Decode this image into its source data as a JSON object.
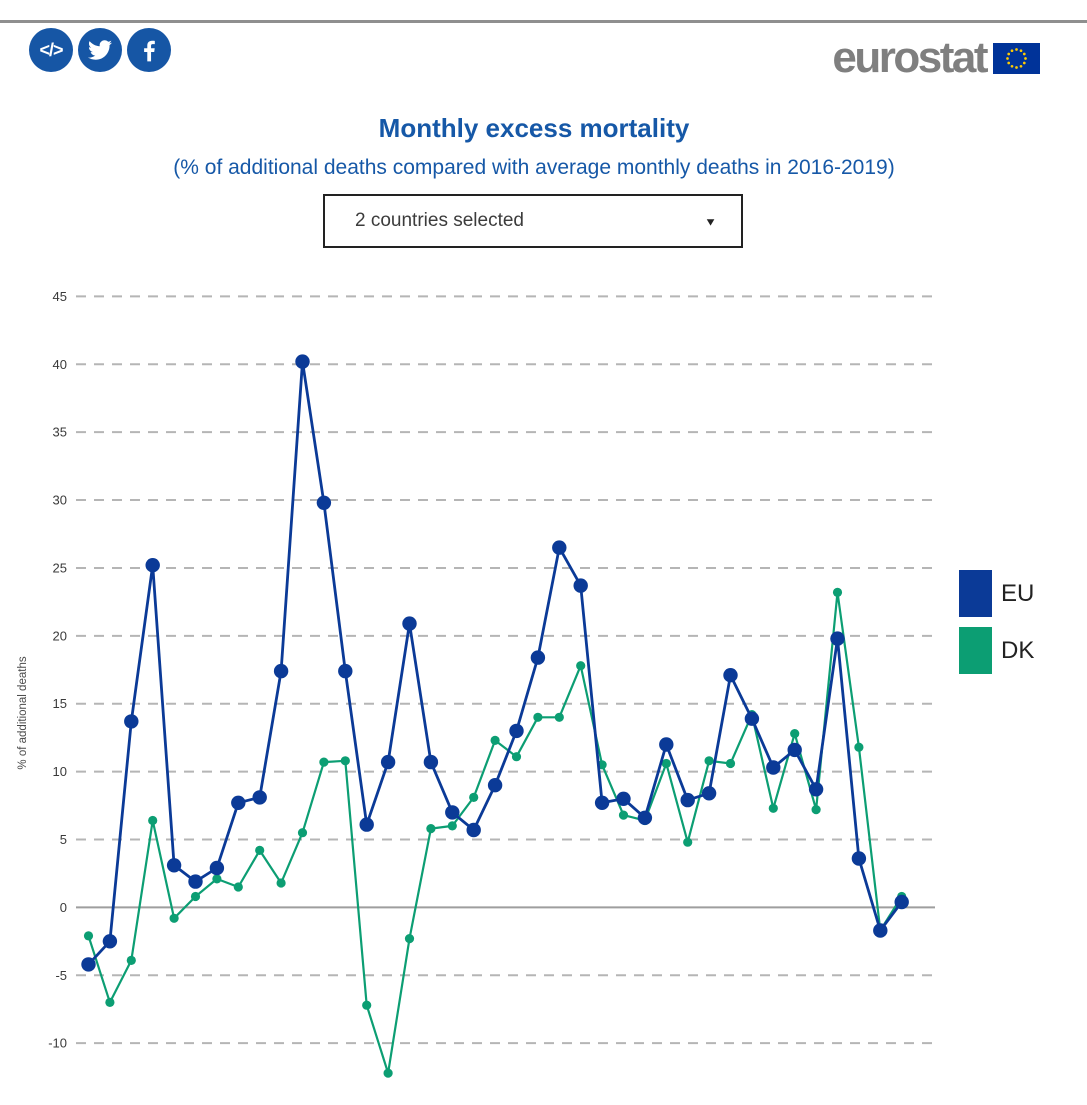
{
  "header": {
    "logo_text": "eurostat",
    "social_buttons": [
      {
        "name": "embed",
        "icon": "code-icon"
      },
      {
        "name": "twitter",
        "icon": "twitter-icon"
      },
      {
        "name": "facebook",
        "icon": "facebook-icon"
      }
    ]
  },
  "title": "Monthly excess mortality",
  "subtitle": "(% of additional deaths compared with average monthly deaths in 2016-2019)",
  "dropdown": {
    "value": "2 countries selected"
  },
  "colors": {
    "accent_blue": "#1658a7",
    "eu_series": "#0b3a97",
    "dk_series": "#0c9e73",
    "grid": "#b5b5b5",
    "zero_line": "#9e9e9e",
    "tick_text": "#3a3a3a",
    "axis_label_text": "#4a4a4a",
    "logo_gray": "#7f7f7f",
    "flag_blue": "#003399",
    "star_yellow": "#ffcc00"
  },
  "chart_data": {
    "type": "line",
    "title": "Monthly excess mortality",
    "subtitle": "(% of additional deaths compared with average monthly deaths in 2016-2019)",
    "ylabel": "% of additional deaths",
    "yticks": [
      45,
      40,
      35,
      30,
      25,
      20,
      15,
      10,
      5,
      0,
      -5,
      -10
    ],
    "ylim": [
      -13,
      46
    ],
    "grid": "dashed horizontal gridlines, solid zero line",
    "legend_position": "right",
    "x_axis_note": "39 consecutive monthly points; x-axis tick labels are cropped out of the visible screenshot",
    "n_points": 39,
    "series": [
      {
        "name": "EU",
        "color": "#0b3a97",
        "marker_radius": 7.2,
        "values": [
          -4.2,
          -2.5,
          13.7,
          25.2,
          3.1,
          1.9,
          2.9,
          7.7,
          8.1,
          17.4,
          40.2,
          29.8,
          17.4,
          6.1,
          10.7,
          20.9,
          10.7,
          7.0,
          5.7,
          9.0,
          13.0,
          18.4,
          26.5,
          23.7,
          7.7,
          8.0,
          6.6,
          12.0,
          7.9,
          8.4,
          17.1,
          13.9,
          10.3,
          11.6,
          8.7,
          19.8,
          3.6,
          -1.7,
          0.4
        ]
      },
      {
        "name": "DK",
        "color": "#0c9e73",
        "marker_radius": 4.6,
        "values": [
          -2.1,
          -7.0,
          -3.9,
          6.4,
          -0.8,
          0.8,
          2.1,
          1.5,
          4.2,
          1.8,
          5.5,
          10.7,
          10.8,
          -7.2,
          -12.2,
          -2.3,
          5.8,
          6.0,
          8.1,
          12.3,
          11.1,
          14.0,
          14.0,
          17.8,
          10.5,
          6.8,
          6.4,
          10.6,
          4.8,
          10.8,
          10.6,
          14.2,
          7.3,
          12.8,
          7.2,
          23.2,
          11.8,
          -1.7,
          0.8
        ]
      }
    ]
  }
}
